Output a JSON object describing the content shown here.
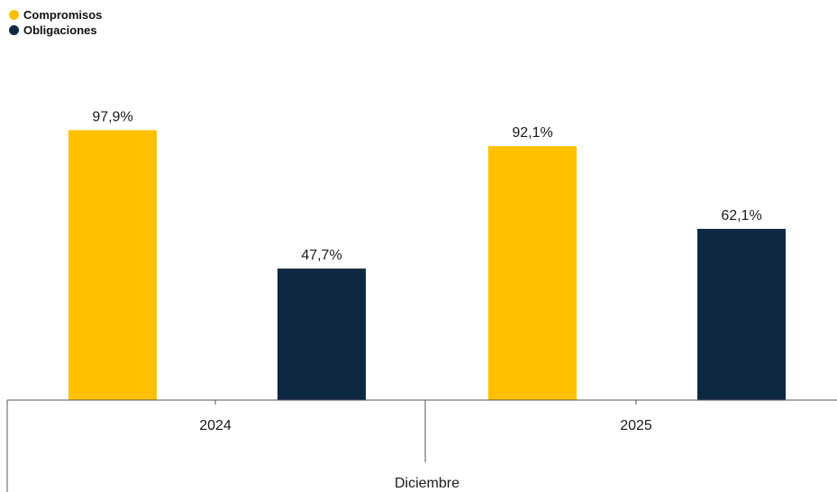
{
  "legend": {
    "items": [
      {
        "label": "Compromisos",
        "color": "#FFC000"
      },
      {
        "label": "Obligaciones",
        "color": "#0F2842"
      }
    ]
  },
  "chart_data": {
    "type": "bar",
    "categories": [
      "2024",
      "2025"
    ],
    "group_label": "Diciembre",
    "series": [
      {
        "name": "Compromisos",
        "color": "#FFC000",
        "values": [
          97.9,
          92.1
        ],
        "labels": [
          "97,9%",
          "92,1%"
        ]
      },
      {
        "name": "Obligaciones",
        "color": "#0F2842",
        "values": [
          47.7,
          62.1
        ],
        "labels": [
          "47,7%",
          "62,1%"
        ]
      }
    ],
    "ylim": [
      0,
      100
    ],
    "grid": false,
    "legend_position": "top-left"
  }
}
